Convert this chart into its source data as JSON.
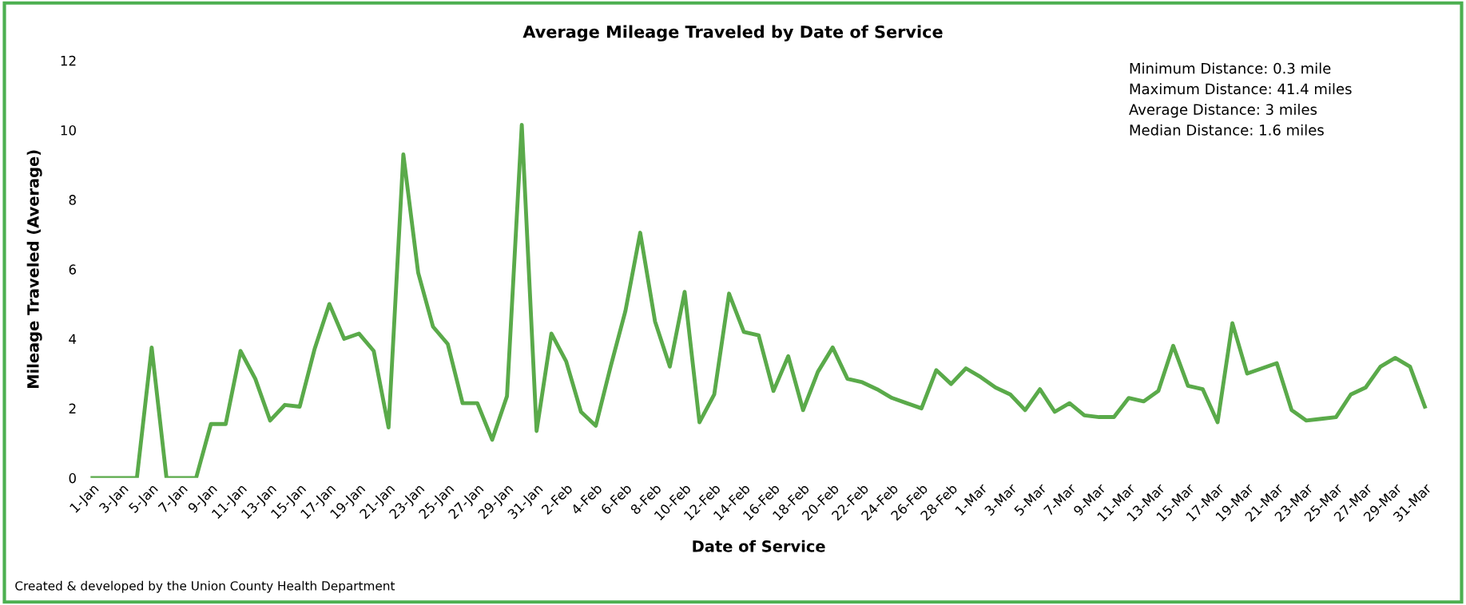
{
  "chart_data": {
    "type": "line",
    "title": "Average Mileage Traveled by Date of Service",
    "xlabel": "Date of Service",
    "ylabel": "Mileage Traveled (Average)",
    "categories": [
      "1-Jan",
      null,
      "3-Jan",
      null,
      "5-Jan",
      null,
      "7-Jan",
      null,
      "9-Jan",
      null,
      "11-Jan",
      null,
      "13-Jan",
      null,
      "15-Jan",
      null,
      "17-Jan",
      null,
      "19-Jan",
      null,
      "21-Jan",
      null,
      "23-Jan",
      null,
      "25-Jan",
      null,
      "27-Jan",
      null,
      "29-Jan",
      null,
      "31-Jan",
      null,
      "2-Feb",
      null,
      "4-Feb",
      null,
      "6-Feb",
      null,
      "8-Feb",
      null,
      "10-Feb",
      null,
      "12-Feb",
      null,
      "14-Feb",
      null,
      "16-Feb",
      null,
      "18-Feb",
      null,
      "20-Feb",
      null,
      "22-Feb",
      null,
      "24-Feb",
      null,
      "26-Feb",
      null,
      "28-Feb",
      null,
      "1-Mar",
      null,
      "3-Mar",
      null,
      "5-Mar",
      null,
      "7-Mar",
      null,
      "9-Mar",
      null,
      "11-Mar",
      null,
      "13-Mar",
      null,
      "15-Mar",
      null,
      "17-Mar",
      null,
      "19-Mar",
      null,
      "21-Mar",
      null,
      "23-Mar",
      null,
      "25-Mar",
      null,
      "27-Mar",
      null,
      "29-Mar",
      null,
      "31-Mar"
    ],
    "series": [
      {
        "color": "#5aaa4a",
        "values": [
          0,
          0,
          0,
          0,
          3.75,
          0,
          0,
          0,
          1.55,
          1.55,
          3.65,
          2.85,
          1.65,
          2.1,
          2.05,
          3.7,
          5.0,
          4.0,
          4.15,
          3.65,
          1.45,
          9.3,
          5.9,
          4.35,
          3.85,
          2.15,
          2.15,
          1.1,
          2.35,
          10.15,
          1.35,
          4.15,
          3.35,
          1.9,
          1.5,
          3.2,
          4.8,
          7.05,
          4.5,
          3.2,
          5.35,
          1.6,
          2.4,
          5.3,
          4.2,
          4.1,
          2.5,
          3.5,
          1.95,
          3.05,
          3.75,
          2.85,
          2.75,
          2.55,
          2.3,
          2.15,
          2.0,
          3.1,
          2.7,
          3.15,
          2.9,
          2.6,
          2.4,
          1.95,
          2.55,
          1.9,
          2.15,
          1.8,
          1.75,
          1.75,
          2.3,
          2.2,
          2.5,
          3.8,
          2.65,
          2.55,
          1.6,
          4.45,
          3.0,
          3.15,
          3.3,
          1.95,
          1.65,
          1.7,
          1.75,
          2.4,
          2.6,
          3.2,
          3.45,
          3.2,
          2.05
        ]
      }
    ],
    "ylim": [
      0,
      12
    ],
    "yticks": [
      0,
      2,
      4,
      6,
      8,
      10,
      12
    ],
    "grid": false,
    "legend": false,
    "marker": "none",
    "line_style": "solid",
    "annotations": [
      "Minimum Distance: 0.3 mile",
      "Maximum Distance: 41.4 miles",
      "Average Distance: 3 miles",
      "Median Distance: 1.6 miles",
      "Created & developed by the Union County Health Department"
    ]
  }
}
